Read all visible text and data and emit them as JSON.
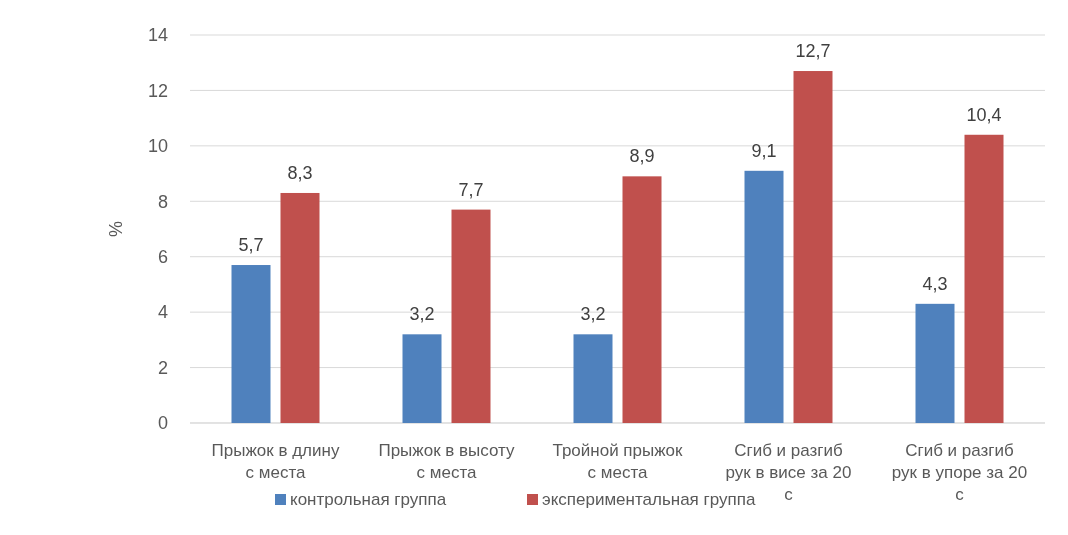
{
  "chart_data": {
    "type": "bar",
    "ylabel": "%",
    "categories": [
      "Прыжок в длину\nс места",
      "Прыжок в высоту\nс места",
      "Тройной прыжок\nс места",
      "Сгиб и разгиб\nрук в висе за 20\nс",
      "Сгиб и разгиб\nрук в упоре за 20\nс"
    ],
    "series": [
      {
        "name": "контрольная группа",
        "color": "#4f81bd",
        "values": [
          5.7,
          3.2,
          3.2,
          9.1,
          4.3
        ],
        "value_labels": [
          "5,7",
          "3,2",
          "3,2",
          "9,1",
          "4,3"
        ]
      },
      {
        "name": "экспериментальная группа",
        "color": "#c0504d",
        "values": [
          8.3,
          7.7,
          8.9,
          12.7,
          10.4
        ],
        "value_labels": [
          "8,3",
          "7,7",
          "8,9",
          "12,7",
          "10,4"
        ]
      }
    ],
    "ylim": [
      0,
      14
    ],
    "yticks": [
      0,
      2,
      4,
      6,
      8,
      10,
      12,
      14
    ],
    "grid": "y",
    "legend": "bottom"
  }
}
